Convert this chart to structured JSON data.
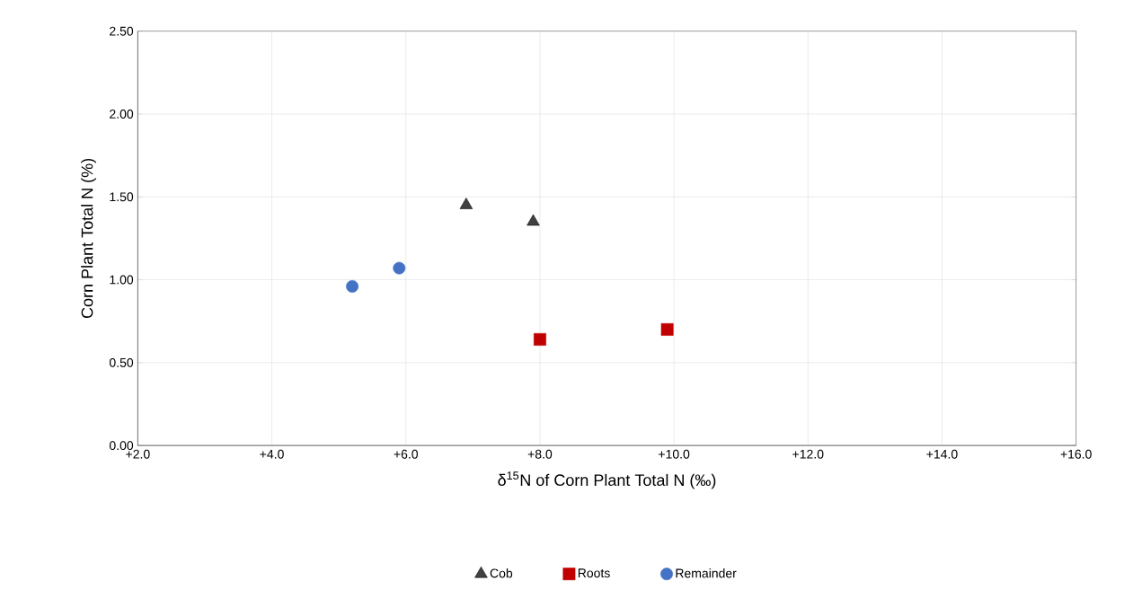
{
  "chart_data": {
    "type": "scatter",
    "xlabel": "δ$^{15}$N of Corn Plant Total N (‰)",
    "ylabel": "Corn Plant Total N (%)",
    "xlim": [
      2,
      16
    ],
    "ylim": [
      0,
      2.5
    ],
    "xticks": [
      {
        "value": 2,
        "label": "+2.0"
      },
      {
        "value": 4,
        "label": "+4.0"
      },
      {
        "value": 6,
        "label": "+6.0"
      },
      {
        "value": 8,
        "label": "+8.0"
      },
      {
        "value": 10,
        "label": "+10.0"
      },
      {
        "value": 12,
        "label": "+12.0"
      },
      {
        "value": 14,
        "label": "+14.0"
      },
      {
        "value": 16,
        "label": "+16.0"
      }
    ],
    "yticks": [
      {
        "value": 0,
        "label": "0.00"
      },
      {
        "value": 0.5,
        "label": "0.50"
      },
      {
        "value": 1,
        "label": "1.00"
      },
      {
        "value": 1.5,
        "label": "1.50"
      },
      {
        "value": 2,
        "label": "2.00"
      },
      {
        "value": 2.5,
        "label": "2.50"
      }
    ],
    "grid": true,
    "legend": "bottom",
    "series": [
      {
        "name": "Cob",
        "color": "#404040",
        "marker": "triangle",
        "x": [
          6.9,
          7.9
        ],
        "values": [
          1.45,
          1.35
        ]
      },
      {
        "name": "Roots",
        "color": "#c00000",
        "marker": "square",
        "x": [
          8.0,
          9.9
        ],
        "values": [
          0.64,
          0.7
        ]
      },
      {
        "name": "Remainder",
        "color": "#4472c4",
        "marker": "circle",
        "x": [
          5.2,
          5.9
        ],
        "values": [
          0.96,
          1.07
        ]
      }
    ]
  }
}
